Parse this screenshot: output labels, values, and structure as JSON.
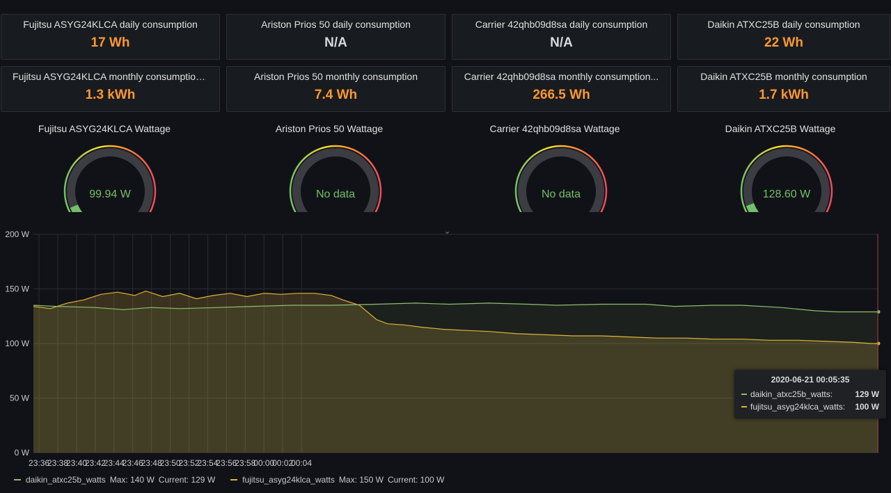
{
  "colors": {
    "orange": "#ff9830",
    "gray_text": "#d8d9da",
    "green": "#73bf69",
    "daikin_line": "#8fbf6d",
    "fujitsu_line": "#e0b43a"
  },
  "stats_daily": [
    {
      "title": "Fujitsu ASYG24KLCA daily consumption",
      "value": "17 Wh",
      "color": "#ff9830"
    },
    {
      "title": "Ariston Prios 50 daily consumption",
      "value": "N/A",
      "color": "#d8d9da"
    },
    {
      "title": "Carrier 42qhb09d8sa daily consumption",
      "value": "N/A",
      "color": "#d8d9da"
    },
    {
      "title": "Daikin ATXC25B daily consumption",
      "value": "22 Wh",
      "color": "#ff9830"
    }
  ],
  "stats_monthly": [
    {
      "title": "Fujitsu ASYG24KLCA monthly consumption...",
      "value": "1.3 kWh",
      "color": "#ff9830"
    },
    {
      "title": "Ariston Prios 50 monthly consumption",
      "value": "7.4 Wh",
      "color": "#ff9830"
    },
    {
      "title": "Carrier 42qhb09d8sa monthly consumption...",
      "value": "266.5 Wh",
      "color": "#ff9830"
    },
    {
      "title": "Daikin ATXC25B monthly consumption",
      "value": "1.7 kWh",
      "color": "#ff9830"
    }
  ],
  "gauges": [
    {
      "title": "Fujitsu ASYG24KLCA Wattage",
      "value": "99.94 W",
      "level": 0.06
    },
    {
      "title": "Ariston Prios 50 Wattage",
      "value": "No data",
      "level": 0
    },
    {
      "title": "Carrier 42qhb09d8sa Wattage",
      "value": "No data",
      "level": 0
    },
    {
      "title": "Daikin ATXC25B Wattage",
      "value": "128.60 W",
      "level": 0.07
    }
  ],
  "chart_data": {
    "type": "area",
    "y_ticks": [
      "200 W",
      "150 W",
      "100 W",
      "50 W",
      "0 W"
    ],
    "ylim": [
      0,
      200
    ],
    "x_ticks": [
      "23:36",
      "23:38",
      "23:40",
      "23:42",
      "23:44",
      "23:46",
      "23:48",
      "23:50",
      "23:52",
      "23:54",
      "23:56",
      "23:58",
      "00:00",
      "00:02",
      "00:04"
    ],
    "grid": true,
    "series": [
      {
        "name": "daikin_atxc25b_watts",
        "color": "#8fbf6d",
        "points": [
          [
            23.59,
            135
          ],
          [
            23.63,
            134
          ],
          [
            23.7,
            133
          ],
          [
            23.75,
            131
          ],
          [
            23.8,
            133
          ],
          [
            23.85,
            132
          ],
          [
            23.92,
            133
          ],
          [
            23.98,
            134
          ],
          [
            24.05,
            135
          ],
          [
            24.12,
            135
          ],
          [
            24.2,
            136
          ],
          [
            24.27,
            137
          ],
          [
            24.33,
            136
          ],
          [
            24.4,
            137
          ],
          [
            24.47,
            136
          ],
          [
            24.52,
            135
          ],
          [
            24.6,
            136
          ],
          [
            24.68,
            136
          ],
          [
            24.73,
            134
          ],
          [
            24.8,
            135
          ],
          [
            24.85,
            135
          ],
          [
            24.92,
            133
          ],
          [
            24.98,
            130
          ],
          [
            25.02,
            129
          ],
          [
            25.08,
            129
          ],
          [
            25.093,
            129
          ]
        ],
        "max": "Max: 140 W",
        "current": "Current: 129 W"
      },
      {
        "name": "fujitsu_asyg24klca_watts",
        "color": "#e0b43a",
        "points": [
          [
            23.59,
            134
          ],
          [
            23.62,
            132
          ],
          [
            23.65,
            137
          ],
          [
            23.68,
            140
          ],
          [
            23.71,
            145
          ],
          [
            23.74,
            147
          ],
          [
            23.77,
            144
          ],
          [
            23.79,
            148
          ],
          [
            23.82,
            143
          ],
          [
            23.85,
            146
          ],
          [
            23.88,
            141
          ],
          [
            23.91,
            144
          ],
          [
            23.94,
            146
          ],
          [
            23.97,
            143
          ],
          [
            24.0,
            146
          ],
          [
            24.03,
            145
          ],
          [
            24.06,
            146
          ],
          [
            24.09,
            146
          ],
          [
            24.12,
            144
          ],
          [
            24.14,
            140
          ],
          [
            24.17,
            135
          ],
          [
            24.2,
            122
          ],
          [
            24.22,
            118
          ],
          [
            24.25,
            117
          ],
          [
            24.28,
            115
          ],
          [
            24.32,
            113
          ],
          [
            24.36,
            112
          ],
          [
            24.4,
            111
          ],
          [
            24.45,
            109
          ],
          [
            24.5,
            108
          ],
          [
            24.55,
            107
          ],
          [
            24.6,
            107
          ],
          [
            24.65,
            106
          ],
          [
            24.7,
            105
          ],
          [
            24.75,
            105
          ],
          [
            24.8,
            104
          ],
          [
            24.85,
            104
          ],
          [
            24.9,
            103
          ],
          [
            24.95,
            103
          ],
          [
            25.0,
            102
          ],
          [
            25.05,
            101
          ],
          [
            25.08,
            100
          ],
          [
            25.093,
            100
          ]
        ],
        "max": "Max: 150 W",
        "current": "Current: 100 W"
      }
    ],
    "tooltip": {
      "time": "2020-06-21 00:05:35",
      "rows": [
        {
          "name": "daikin_atxc25b_watts:",
          "value": "129 W",
          "color": "#8fbf6d"
        },
        {
          "name": "fujitsu_asyg24klca_watts:",
          "value": "100 W",
          "color": "#e0b43a"
        }
      ]
    }
  }
}
